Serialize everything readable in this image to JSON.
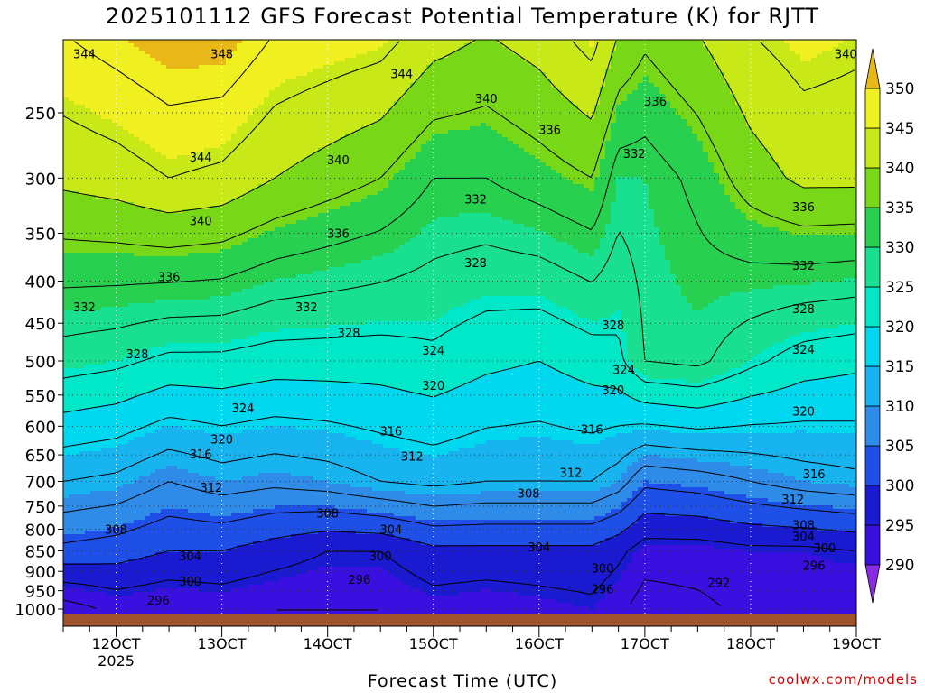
{
  "chart_data": {
    "type": "heatmap",
    "title": "2025101112 GFS Forecast Potential Temperature (K) for RJTT",
    "xlabel": "Forecast Time (UTC)",
    "ylabel": "",
    "credit": "coolwx.com/models",
    "x_ticks": [
      "12OCT",
      "13OCT",
      "14OCT",
      "15OCT",
      "16OCT",
      "17OCT",
      "18OCT",
      "19OCT"
    ],
    "x_sub_label": "2025",
    "x_range": [
      "11OCT 12Z",
      "19OCT 00Z"
    ],
    "y_ticks": [
      250,
      300,
      350,
      400,
      450,
      500,
      550,
      600,
      650,
      700,
      750,
      800,
      850,
      900,
      950,
      1000
    ],
    "y_range": [
      1000,
      200
    ],
    "y_scale": "log",
    "grid": true,
    "colorbar": {
      "levels": [
        290,
        295,
        300,
        305,
        310,
        315,
        320,
        325,
        330,
        335,
        340,
        345,
        350
      ],
      "colors": [
        "#8a2be2",
        "#3a10e0",
        "#1a1ad0",
        "#1e50e8",
        "#2e8ce8",
        "#18b4f0",
        "#00d8f0",
        "#00e8c8",
        "#18e090",
        "#28d050",
        "#78d818",
        "#c8e818",
        "#f0f020",
        "#e8b818"
      ],
      "labels": [
        "290",
        "295",
        "300",
        "305",
        "310",
        "315",
        "320",
        "325",
        "330",
        "335",
        "340",
        "345",
        "350"
      ]
    },
    "profiles": {
      "day": [
        11.5,
        12.0,
        12.5,
        13.0,
        13.5,
        14.0,
        14.5,
        15.0,
        15.5,
        16.0,
        16.5,
        16.75,
        17.0,
        17.5,
        18.0,
        18.5,
        19.0
      ],
      "t1000": [
        290,
        293,
        292,
        293,
        292,
        292,
        292,
        294,
        293,
        294,
        295,
        293,
        290,
        291,
        293,
        293,
        292
      ],
      "t850": [
        303,
        302,
        300,
        300,
        298,
        296,
        296,
        299,
        299,
        299,
        299,
        297,
        294,
        294,
        295,
        295,
        296
      ],
      "t700": [
        312,
        311,
        308,
        310,
        309,
        310,
        312,
        313,
        312,
        312,
        312,
        310,
        305,
        306,
        308,
        310,
        311
      ],
      "t500": [
        326,
        325,
        323,
        323,
        322,
        322,
        322,
        323,
        321,
        320,
        322,
        323,
        328,
        329,
        325,
        322,
        321
      ],
      "t300": [
        341,
        342,
        344,
        343,
        340,
        338,
        336,
        332,
        332,
        334,
        336,
        330,
        330,
        333,
        338,
        341,
        341
      ],
      "t200": [
        348,
        350,
        352,
        352,
        348,
        347,
        346,
        342,
        340,
        342,
        346,
        340,
        337,
        340,
        344,
        346,
        345
      ]
    },
    "contour_labels": [
      {
        "value": 344,
        "day": 11.7,
        "p": 212
      },
      {
        "value": 348,
        "day": 13.0,
        "p": 212
      },
      {
        "value": 344,
        "day": 14.7,
        "p": 224
      },
      {
        "value": 340,
        "day": 18.9,
        "p": 212
      },
      {
        "value": 340,
        "day": 15.5,
        "p": 240
      },
      {
        "value": 336,
        "day": 17.1,
        "p": 242
      },
      {
        "value": 336,
        "day": 16.1,
        "p": 262
      },
      {
        "value": 332,
        "day": 16.9,
        "p": 280
      },
      {
        "value": 344,
        "day": 12.8,
        "p": 283
      },
      {
        "value": 340,
        "day": 14.1,
        "p": 285
      },
      {
        "value": 332,
        "day": 15.4,
        "p": 318
      },
      {
        "value": 340,
        "day": 12.8,
        "p": 338
      },
      {
        "value": 336,
        "day": 14.1,
        "p": 350
      },
      {
        "value": 336,
        "day": 18.5,
        "p": 325
      },
      {
        "value": 328,
        "day": 15.4,
        "p": 380
      },
      {
        "value": 332,
        "day": 18.5,
        "p": 383
      },
      {
        "value": 336,
        "day": 12.5,
        "p": 395
      },
      {
        "value": 332,
        "day": 11.7,
        "p": 430
      },
      {
        "value": 332,
        "day": 13.8,
        "p": 430
      },
      {
        "value": 328,
        "day": 18.5,
        "p": 432
      },
      {
        "value": 328,
        "day": 16.7,
        "p": 452
      },
      {
        "value": 328,
        "day": 14.2,
        "p": 462
      },
      {
        "value": 328,
        "day": 12.2,
        "p": 490
      },
      {
        "value": 324,
        "day": 15.0,
        "p": 485
      },
      {
        "value": 324,
        "day": 18.5,
        "p": 484
      },
      {
        "value": 324,
        "day": 16.8,
        "p": 512
      },
      {
        "value": 320,
        "day": 15.0,
        "p": 535
      },
      {
        "value": 320,
        "day": 16.7,
        "p": 542
      },
      {
        "value": 324,
        "day": 13.2,
        "p": 570
      },
      {
        "value": 320,
        "day": 18.5,
        "p": 575
      },
      {
        "value": 316,
        "day": 14.6,
        "p": 608
      },
      {
        "value": 316,
        "day": 16.5,
        "p": 605
      },
      {
        "value": 320,
        "day": 13.0,
        "p": 622
      },
      {
        "value": 316,
        "day": 12.8,
        "p": 648
      },
      {
        "value": 312,
        "day": 14.8,
        "p": 652
      },
      {
        "value": 312,
        "day": 16.3,
        "p": 683
      },
      {
        "value": 316,
        "day": 18.6,
        "p": 685
      },
      {
        "value": 312,
        "day": 12.9,
        "p": 712
      },
      {
        "value": 308,
        "day": 15.9,
        "p": 723
      },
      {
        "value": 312,
        "day": 18.4,
        "p": 735
      },
      {
        "value": 308,
        "day": 14.0,
        "p": 765
      },
      {
        "value": 308,
        "day": 18.5,
        "p": 790
      },
      {
        "value": 308,
        "day": 12.0,
        "p": 800
      },
      {
        "value": 304,
        "day": 14.6,
        "p": 800
      },
      {
        "value": 304,
        "day": 18.5,
        "p": 815
      },
      {
        "value": 304,
        "day": 16.0,
        "p": 840
      },
      {
        "value": 300,
        "day": 18.7,
        "p": 842
      },
      {
        "value": 304,
        "day": 12.7,
        "p": 862
      },
      {
        "value": 300,
        "day": 14.5,
        "p": 862
      },
      {
        "value": 296,
        "day": 18.6,
        "p": 885
      },
      {
        "value": 300,
        "day": 16.6,
        "p": 892
      },
      {
        "value": 296,
        "day": 14.3,
        "p": 920
      },
      {
        "value": 292,
        "day": 17.7,
        "p": 928
      },
      {
        "value": 300,
        "day": 12.7,
        "p": 925
      },
      {
        "value": 296,
        "day": 16.6,
        "p": 945
      },
      {
        "value": 296,
        "day": 12.4,
        "p": 975
      }
    ]
  }
}
